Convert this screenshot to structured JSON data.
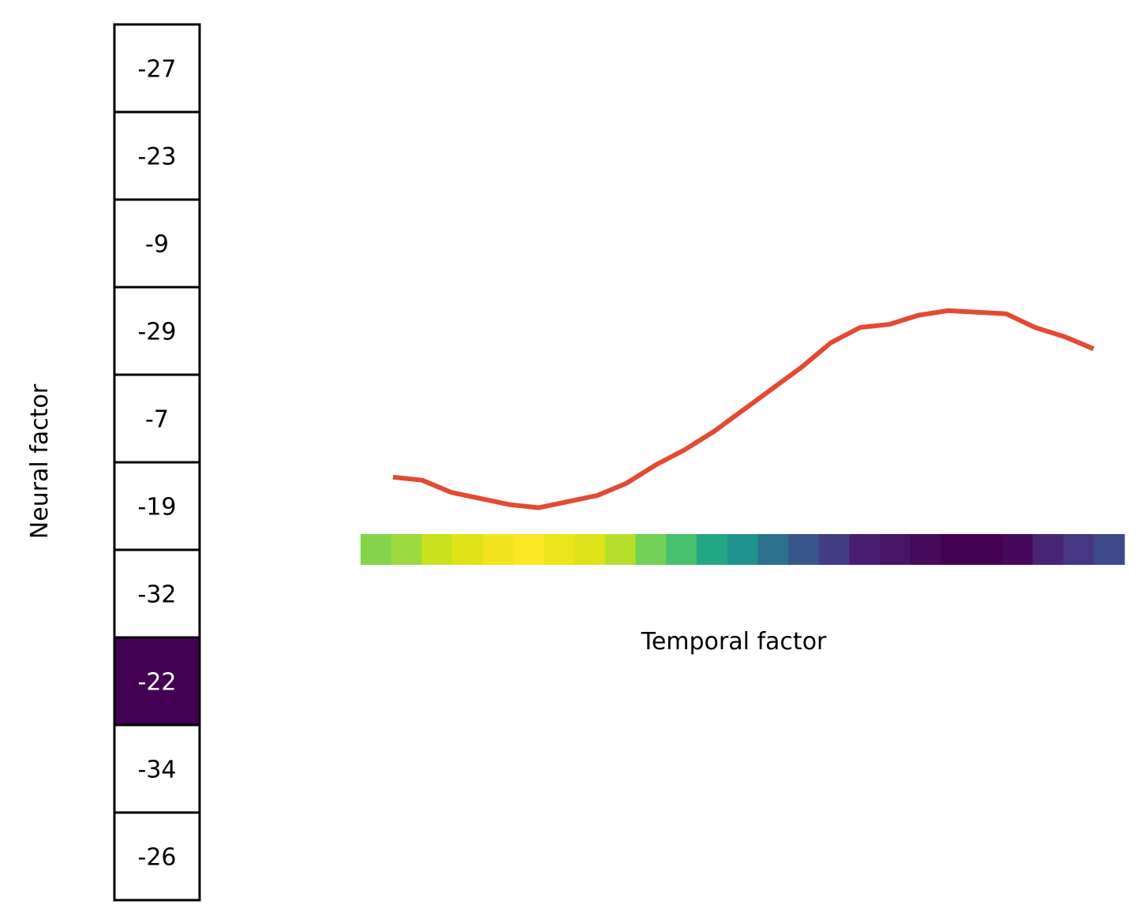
{
  "chart_data": {
    "type": "heatmap",
    "neural_factor": {
      "label": "Neural factor",
      "values": [
        -27,
        -23,
        -9,
        -29,
        -7,
        -19,
        -32,
        -22,
        -34,
        -26
      ],
      "highlighted_index": 7,
      "highlight_color": "#440154",
      "cell_color": "#ffffff"
    },
    "temporal_factor": {
      "label": "Temporal factor",
      "line_color": "#e34a33",
      "series": {
        "values": [
          0.6,
          0.58,
          0.5,
          0.46,
          0.42,
          0.4,
          0.44,
          0.48,
          0.56,
          0.68,
          0.78,
          0.9,
          1.04,
          1.18,
          1.32,
          1.48,
          1.58,
          1.6,
          1.66,
          1.69,
          1.68,
          1.67,
          1.58,
          1.52,
          1.44
        ]
      },
      "colorbar_colors": [
        "#84d44b",
        "#9bd93c",
        "#cae11f",
        "#dfe318",
        "#f2e51d",
        "#fde725",
        "#ece51b",
        "#dde318",
        "#b5de2b",
        "#73d056",
        "#48c16e",
        "#22a785",
        "#1f948c",
        "#2d718e",
        "#39568c",
        "#433d84",
        "#481d6f",
        "#471567",
        "#450a5c",
        "#440154",
        "#440154",
        "#46085c",
        "#482475",
        "#453781",
        "#3e4989"
      ]
    }
  }
}
